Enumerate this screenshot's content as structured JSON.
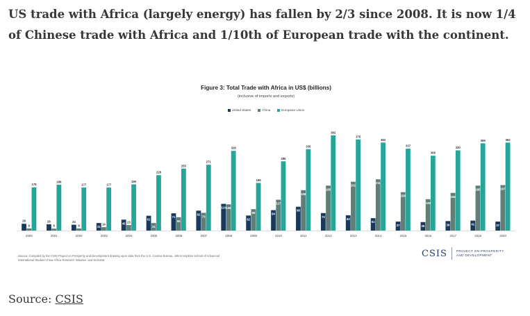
{
  "headline": "US trade with Africa (largely energy) has fallen by 2/3 since 2008. It is now 1/4 of Chinese trade with Africa and 1/10th of European trade with the continent.",
  "source": {
    "label": "Source:",
    "link_text": "CSIS"
  },
  "figure": {
    "note": "Source: Compiled by the CSIS Project on Prosperity and Development drawing upon data from the U.S. Census Bureau, Johns Hopkins School of Advanced International Studies China-Africa Research Initiative, and Eurostat.",
    "logo": {
      "wordmark": "CSIS",
      "tagline": "PROJECT ON PROSPERITY AND DEVELOPMENT"
    }
  },
  "colors": {
    "us": "#1a3a5c",
    "china": "#5e7f77",
    "eu": "#26a69a"
  },
  "chart_data": {
    "type": "bar",
    "title": "Figure 3: Total Trade with Africa in US$ (billions)",
    "subtitle": "(inclusive of imports and exports)",
    "legend_position": "top-center",
    "grid": false,
    "categories": [
      "2000",
      "2001",
      "2002",
      "2003",
      "2004",
      "2005",
      "2006",
      "2007",
      "2008",
      "2009",
      "2010",
      "2011",
      "2012",
      "2013",
      "2014",
      "2015",
      "2016",
      "2017",
      "2018",
      "2020"
    ],
    "ylim": [
      0,
      400
    ],
    "series": [
      {
        "name": "United States",
        "values": [
          28,
          26,
          24,
          31,
          45,
          61,
          71,
          82,
          110,
          62,
          84,
          98,
          72,
          63,
          51,
          37,
          35,
          39,
          41,
          37
        ]
      },
      {
        "name": "China",
        "values": [
          9,
          8,
          9,
          14,
          23,
          31,
          55,
          73,
          108,
          88,
          127,
          166,
          185,
          201,
          211,
          158,
          129,
          155,
          185,
          187
        ]
      },
      {
        "name": "European Union",
        "values": [
          178,
          189,
          177,
          177,
          190,
          228,
          255,
          271,
          328,
          196,
          285,
          335,
          392,
          375,
          362,
          337,
          308,
          330,
          359,
          362
        ]
      }
    ]
  }
}
